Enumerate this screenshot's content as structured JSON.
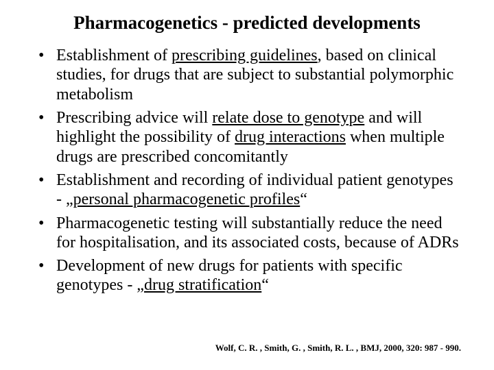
{
  "title": "Pharmacogenetics - predicted developments",
  "title_fontsize": 27,
  "title_weight": "bold",
  "body_fontsize": 24,
  "font_family": "Times New Roman",
  "background_color": "#ffffff",
  "text_color": "#000000",
  "bullets": [
    {
      "parts": [
        {
          "text": "Establishment of ",
          "underline": false
        },
        {
          "text": "prescribing guidelines",
          "underline": true
        },
        {
          "text": ", based on clinical studies, for drugs that are subject to substantial polymorphic metabolism",
          "underline": false
        }
      ]
    },
    {
      "parts": [
        {
          "text": "Prescribing advice will ",
          "underline": false
        },
        {
          "text": "relate dose to genotype",
          "underline": true
        },
        {
          "text": " and will highlight the possibility of ",
          "underline": false
        },
        {
          "text": "drug interactions",
          "underline": true
        },
        {
          "text": " when multiple drugs are prescribed concomitantly",
          "underline": false
        }
      ]
    },
    {
      "parts": [
        {
          "text": "Establishment and recording of individual patient genotypes - „",
          "underline": false
        },
        {
          "text": "personal pharmacogenetic profiles",
          "underline": true
        },
        {
          "text": "“",
          "underline": false
        }
      ]
    },
    {
      "parts": [
        {
          "text": "Pharmacogenetic testing will substantially reduce the need for hospitalisation, and its associated costs, because of ADRs",
          "underline": false
        }
      ]
    },
    {
      "parts": [
        {
          "text": "Development of new drugs for patients with specific genotypes - „",
          "underline": false
        },
        {
          "text": "drug stratification",
          "underline": true
        },
        {
          "text": "“",
          "underline": false
        }
      ]
    }
  ],
  "citation": "Wolf, C. R. , Smith, G. , Smith, R. L. , BMJ, 2000, 320: 987 - 990.",
  "citation_fontsize": 13,
  "citation_weight": "bold"
}
